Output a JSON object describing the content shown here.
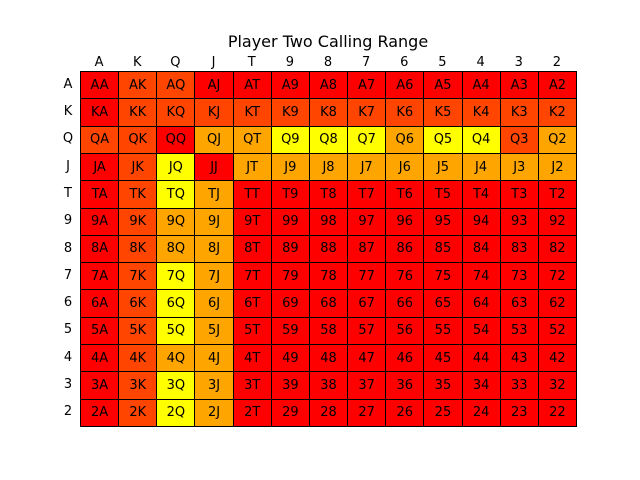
{
  "chart_data": {
    "type": "heatmap",
    "title": "Player Two Calling Range",
    "columns": [
      "A",
      "K",
      "Q",
      "J",
      "T",
      "9",
      "8",
      "7",
      "6",
      "5",
      "4",
      "3",
      "2"
    ],
    "rows": [
      "A",
      "K",
      "Q",
      "J",
      "T",
      "9",
      "8",
      "7",
      "6",
      "5",
      "4",
      "3",
      "2"
    ],
    "colors": {
      "red": "#ff0000",
      "orange_red": "#ff4500",
      "orange": "#ffa500",
      "yellow": "#ffff00"
    },
    "cells": [
      [
        [
          "AA",
          "red"
        ],
        [
          "AK",
          "orange_red"
        ],
        [
          "AQ",
          "orange_red"
        ],
        [
          "AJ",
          "red"
        ],
        [
          "AT",
          "red"
        ],
        [
          "A9",
          "red"
        ],
        [
          "A8",
          "red"
        ],
        [
          "A7",
          "red"
        ],
        [
          "A6",
          "red"
        ],
        [
          "A5",
          "red"
        ],
        [
          "A4",
          "red"
        ],
        [
          "A3",
          "red"
        ],
        [
          "A2",
          "red"
        ]
      ],
      [
        [
          "KA",
          "red"
        ],
        [
          "KK",
          "orange_red"
        ],
        [
          "KQ",
          "orange_red"
        ],
        [
          "KJ",
          "orange_red"
        ],
        [
          "KT",
          "orange_red"
        ],
        [
          "K9",
          "orange_red"
        ],
        [
          "K8",
          "orange_red"
        ],
        [
          "K7",
          "orange_red"
        ],
        [
          "K6",
          "orange_red"
        ],
        [
          "K5",
          "orange_red"
        ],
        [
          "K4",
          "orange_red"
        ],
        [
          "K3",
          "orange_red"
        ],
        [
          "K2",
          "orange_red"
        ]
      ],
      [
        [
          "QA",
          "orange_red"
        ],
        [
          "QK",
          "orange_red"
        ],
        [
          "QQ",
          "red"
        ],
        [
          "QJ",
          "orange"
        ],
        [
          "QT",
          "orange"
        ],
        [
          "Q9",
          "yellow"
        ],
        [
          "Q8",
          "yellow"
        ],
        [
          "Q7",
          "yellow"
        ],
        [
          "Q6",
          "orange"
        ],
        [
          "Q5",
          "yellow"
        ],
        [
          "Q4",
          "yellow"
        ],
        [
          "Q3",
          "orange_red"
        ],
        [
          "Q2",
          "orange"
        ]
      ],
      [
        [
          "JA",
          "red"
        ],
        [
          "JK",
          "orange_red"
        ],
        [
          "JQ",
          "yellow"
        ],
        [
          "JJ",
          "red"
        ],
        [
          "JT",
          "orange"
        ],
        [
          "J9",
          "orange"
        ],
        [
          "J8",
          "orange"
        ],
        [
          "J7",
          "orange"
        ],
        [
          "J6",
          "orange"
        ],
        [
          "J5",
          "orange"
        ],
        [
          "J4",
          "orange"
        ],
        [
          "J3",
          "orange"
        ],
        [
          "J2",
          "orange"
        ]
      ],
      [
        [
          "TA",
          "red"
        ],
        [
          "TK",
          "orange_red"
        ],
        [
          "TQ",
          "yellow"
        ],
        [
          "TJ",
          "orange"
        ],
        [
          "TT",
          "red"
        ],
        [
          "T9",
          "red"
        ],
        [
          "T8",
          "red"
        ],
        [
          "T7",
          "red"
        ],
        [
          "T6",
          "red"
        ],
        [
          "T5",
          "red"
        ],
        [
          "T4",
          "red"
        ],
        [
          "T3",
          "red"
        ],
        [
          "T2",
          "red"
        ]
      ],
      [
        [
          "9A",
          "red"
        ],
        [
          "9K",
          "orange_red"
        ],
        [
          "9Q",
          "orange"
        ],
        [
          "9J",
          "orange"
        ],
        [
          "9T",
          "red"
        ],
        [
          "99",
          "red"
        ],
        [
          "98",
          "red"
        ],
        [
          "97",
          "red"
        ],
        [
          "96",
          "red"
        ],
        [
          "95",
          "red"
        ],
        [
          "94",
          "red"
        ],
        [
          "93",
          "red"
        ],
        [
          "92",
          "red"
        ]
      ],
      [
        [
          "8A",
          "red"
        ],
        [
          "8K",
          "orange_red"
        ],
        [
          "8Q",
          "orange"
        ],
        [
          "8J",
          "orange"
        ],
        [
          "8T",
          "red"
        ],
        [
          "89",
          "red"
        ],
        [
          "88",
          "red"
        ],
        [
          "87",
          "red"
        ],
        [
          "86",
          "red"
        ],
        [
          "85",
          "red"
        ],
        [
          "84",
          "red"
        ],
        [
          "83",
          "red"
        ],
        [
          "82",
          "red"
        ]
      ],
      [
        [
          "7A",
          "red"
        ],
        [
          "7K",
          "orange_red"
        ],
        [
          "7Q",
          "yellow"
        ],
        [
          "7J",
          "orange"
        ],
        [
          "7T",
          "red"
        ],
        [
          "79",
          "red"
        ],
        [
          "78",
          "red"
        ],
        [
          "77",
          "red"
        ],
        [
          "76",
          "red"
        ],
        [
          "75",
          "red"
        ],
        [
          "74",
          "red"
        ],
        [
          "73",
          "red"
        ],
        [
          "72",
          "red"
        ]
      ],
      [
        [
          "6A",
          "red"
        ],
        [
          "6K",
          "orange_red"
        ],
        [
          "6Q",
          "yellow"
        ],
        [
          "6J",
          "orange"
        ],
        [
          "6T",
          "red"
        ],
        [
          "69",
          "red"
        ],
        [
          "68",
          "red"
        ],
        [
          "67",
          "red"
        ],
        [
          "66",
          "red"
        ],
        [
          "65",
          "red"
        ],
        [
          "64",
          "red"
        ],
        [
          "63",
          "red"
        ],
        [
          "62",
          "red"
        ]
      ],
      [
        [
          "5A",
          "red"
        ],
        [
          "5K",
          "orange_red"
        ],
        [
          "5Q",
          "yellow"
        ],
        [
          "5J",
          "orange"
        ],
        [
          "5T",
          "red"
        ],
        [
          "59",
          "red"
        ],
        [
          "58",
          "red"
        ],
        [
          "57",
          "red"
        ],
        [
          "56",
          "red"
        ],
        [
          "55",
          "red"
        ],
        [
          "54",
          "red"
        ],
        [
          "53",
          "red"
        ],
        [
          "52",
          "red"
        ]
      ],
      [
        [
          "4A",
          "red"
        ],
        [
          "4K",
          "orange_red"
        ],
        [
          "4Q",
          "orange"
        ],
        [
          "4J",
          "orange"
        ],
        [
          "4T",
          "red"
        ],
        [
          "49",
          "red"
        ],
        [
          "48",
          "red"
        ],
        [
          "47",
          "red"
        ],
        [
          "46",
          "red"
        ],
        [
          "45",
          "red"
        ],
        [
          "44",
          "red"
        ],
        [
          "43",
          "red"
        ],
        [
          "42",
          "red"
        ]
      ],
      [
        [
          "3A",
          "red"
        ],
        [
          "3K",
          "orange_red"
        ],
        [
          "3Q",
          "yellow"
        ],
        [
          "3J",
          "orange"
        ],
        [
          "3T",
          "red"
        ],
        [
          "39",
          "red"
        ],
        [
          "38",
          "red"
        ],
        [
          "37",
          "red"
        ],
        [
          "36",
          "red"
        ],
        [
          "35",
          "red"
        ],
        [
          "34",
          "red"
        ],
        [
          "33",
          "red"
        ],
        [
          "32",
          "red"
        ]
      ],
      [
        [
          "2A",
          "red"
        ],
        [
          "2K",
          "orange_red"
        ],
        [
          "2Q",
          "yellow"
        ],
        [
          "2J",
          "orange"
        ],
        [
          "2T",
          "red"
        ],
        [
          "29",
          "red"
        ],
        [
          "28",
          "red"
        ],
        [
          "27",
          "red"
        ],
        [
          "26",
          "red"
        ],
        [
          "25",
          "red"
        ],
        [
          "24",
          "red"
        ],
        [
          "23",
          "red"
        ],
        [
          "22",
          "red"
        ]
      ]
    ]
  }
}
